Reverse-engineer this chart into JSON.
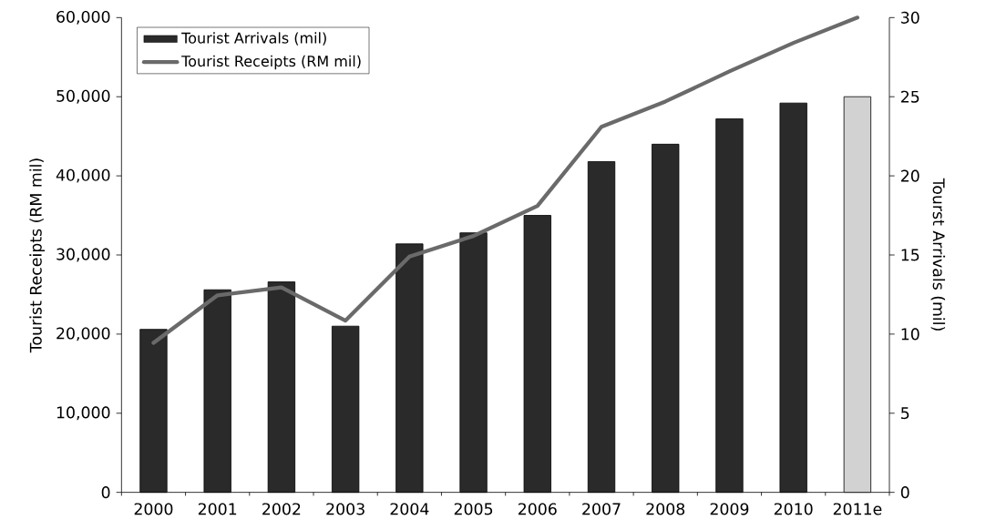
{
  "chart_data": {
    "type": "bar",
    "categories": [
      "2000",
      "2001",
      "2002",
      "2003",
      "2004",
      "2005",
      "2006",
      "2007",
      "2008",
      "2009",
      "2010",
      "2011e"
    ],
    "series": [
      {
        "name": "Tourist Arrivals (mil)",
        "axis": "y2",
        "color": "#2a2a2a",
        "colors": [
          "#2a2a2a",
          "#2a2a2a",
          "#2a2a2a",
          "#2a2a2a",
          "#2a2a2a",
          "#2a2a2a",
          "#2a2a2a",
          "#2a2a2a",
          "#2a2a2a",
          "#2a2a2a",
          "#2a2a2a",
          "#d2d2d2"
        ],
        "values": [
          10.3,
          12.8,
          13.3,
          10.5,
          15.7,
          16.4,
          17.5,
          20.9,
          22.0,
          23.6,
          24.6,
          25.0
        ]
      },
      {
        "name": "Tourist Receipts (RM mil)",
        "type": "line",
        "color": "#6a6a6a",
        "values": [
          18900,
          24900,
          25900,
          21700,
          29800,
          32400,
          36200,
          46200,
          49400,
          53200,
          56800,
          60000
        ]
      }
    ],
    "ylabel": "Tourist Receipts (RM mil)",
    "y2label": "Tourst Arrivals (mil)",
    "ylim": [
      0,
      60000
    ],
    "yticks": [
      {
        "value": 0,
        "label": "0"
      },
      {
        "value": 10000,
        "label": "10,000"
      },
      {
        "value": 20000,
        "label": "20,000"
      },
      {
        "value": 30000,
        "label": "30,000"
      },
      {
        "value": 40000,
        "label": "40,000"
      },
      {
        "value": 50000,
        "label": "50,000"
      },
      {
        "value": 60000,
        "label": "60,000"
      }
    ],
    "y2lim": [
      0,
      30
    ],
    "y2ticks": [
      0,
      5,
      10,
      15,
      20,
      25,
      30
    ],
    "legend": "top left",
    "line_style": "solid"
  }
}
